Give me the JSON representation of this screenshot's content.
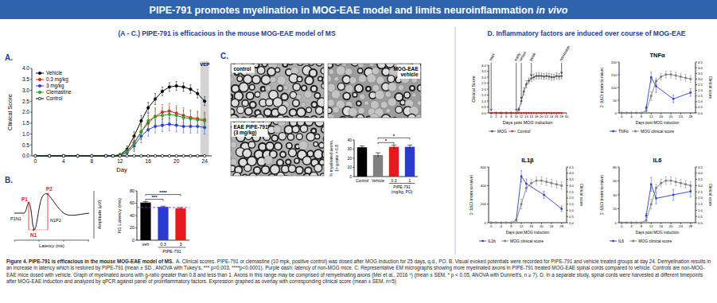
{
  "header": {
    "title": "PIPE-791 promotes myelination in MOG-EAE model and limits neuroinflammation",
    "title_italic": "in vivo"
  },
  "sections": [
    {
      "heading": "(A - C.) PIPE-791 is efficacious in the mouse MOG-EAE model of MS"
    },
    {
      "heading": "D.  Inflammatory factors are induced over course of  MOG-EAE"
    }
  ],
  "vep_diagram": {
    "peaks": [
      "P1",
      "N1",
      "P2"
    ],
    "intervals": [
      "P1N1",
      "N1P2"
    ],
    "xlabel": "Latency (ms)",
    "ylabel": "Amplitude (µV)"
  },
  "micrographs": [
    {
      "lines": [
        "control"
      ]
    },
    {
      "lines": [
        "MOG-EAE",
        "vehicle"
      ]
    },
    {
      "lines": [
        "EAE PIPE-791",
        "(3 mg/kg)"
      ]
    }
  ],
  "chart_data": [
    {
      "type": "line",
      "panel": "A.",
      "xlabel": "Day",
      "ylabel": "Clinical Score",
      "xlim": [
        -0.5,
        25
      ],
      "ylim": [
        0,
        4
      ],
      "xticks": [
        0,
        4,
        8,
        12,
        16,
        20,
        24
      ],
      "yticks": [
        {
          "value": 0,
          "label": "0.0"
        },
        0.5,
        {
          "value": 1,
          "label": "1.0"
        },
        1.5,
        {
          "value": 2,
          "label": "2.0"
        },
        2.5,
        {
          "value": 3,
          "label": "3.0"
        },
        3.5,
        {
          "value": 4,
          "label": "4.0"
        }
      ],
      "legend": "upper left",
      "annotations": [
        {
          "text": "VEP",
          "x_range": [
            23.4,
            24.6
          ]
        }
      ],
      "x": [
        0,
        2,
        4,
        6,
        8,
        10,
        11,
        12,
        13,
        14,
        15,
        16,
        17,
        18,
        19,
        20,
        21,
        22,
        23,
        24
      ],
      "series": [
        {
          "name": "Vehicle",
          "color": "#000000",
          "marker": "circle",
          "values": [
            0,
            0,
            0,
            0,
            0,
            0,
            0,
            0.05,
            0.3,
            0.9,
            1.6,
            2.2,
            2.6,
            2.95,
            3.15,
            3.2,
            3.15,
            3.05,
            2.85,
            2.5
          ],
          "errors": [
            null,
            null,
            null,
            null,
            null,
            null,
            null,
            0.05,
            0.15,
            0.2,
            0.25,
            0.25,
            0.25,
            0.2,
            0.2,
            0.2,
            0.2,
            0.2,
            0.2,
            0.2
          ]
        },
        {
          "name": "0.3 mg/kg",
          "color": "#e41a1c",
          "marker": "circle",
          "values": [
            0,
            0,
            0,
            0,
            0,
            0,
            0,
            0.05,
            0.2,
            0.6,
            1.1,
            1.5,
            1.8,
            2.0,
            2.05,
            1.95,
            1.85,
            1.75,
            1.7,
            1.65
          ],
          "errors": [
            null,
            null,
            null,
            null,
            null,
            null,
            null,
            0.05,
            0.1,
            0.3,
            0.35,
            0.35,
            0.35,
            0.35,
            0.35,
            0.35,
            0.35,
            0.35,
            0.35,
            0.35
          ]
        },
        {
          "name": "3 mg/kg",
          "color": "#2b3bd1",
          "marker": "circle",
          "values": [
            0,
            0,
            0,
            0,
            0,
            0,
            0,
            0,
            0.15,
            0.45,
            0.9,
            1.2,
            1.35,
            1.4,
            1.45,
            1.4,
            1.35,
            1.35,
            1.35,
            1.3
          ],
          "errors": [
            null,
            null,
            null,
            null,
            null,
            null,
            null,
            null,
            0.1,
            0.25,
            0.3,
            0.3,
            0.3,
            0.3,
            0.3,
            0.3,
            0.3,
            0.3,
            0.3,
            0.3
          ]
        },
        {
          "name": "Clemastine",
          "color": "#2ca02c",
          "marker": "circle",
          "values": [
            0,
            0,
            0,
            0,
            0,
            0,
            0,
            0.05,
            0.2,
            0.55,
            1.1,
            1.6,
            1.8,
            1.85,
            1.9,
            1.85,
            1.75,
            1.7,
            1.65,
            1.6
          ],
          "errors": [
            null,
            null,
            null,
            null,
            null,
            null,
            null,
            0.05,
            0.1,
            0.3,
            0.35,
            0.4,
            0.4,
            0.35,
            0.35,
            0.35,
            0.35,
            0.35,
            0.35,
            0.35
          ]
        },
        {
          "name": "Control",
          "color": "#000000",
          "marker": "open-circle",
          "values": [
            0,
            0,
            0,
            0,
            0,
            0,
            0,
            0,
            0,
            0,
            0,
            0,
            0,
            0,
            0,
            0,
            0,
            0,
            0,
            0
          ]
        }
      ]
    },
    {
      "type": "bar",
      "panel": "B.",
      "ylabel": "N1 Latency (ms)",
      "categories": [
        "veh",
        "0.3",
        "3"
      ],
      "group": {
        "label": "PIPE-791",
        "categories": [
          "0.3",
          "3"
        ]
      },
      "values": [
        61,
        54,
        51.5
      ],
      "errors": [
        1.5,
        1.2,
        1.5
      ],
      "colors": [
        "#000000",
        "#2b3bd1",
        "#e41a1c"
      ],
      "ylim": [
        0,
        80
      ],
      "yticks": [
        0,
        20,
        40,
        60,
        80
      ],
      "reference_line": {
        "value": 53,
        "color": "#9b30d9",
        "line_style": "dashed"
      },
      "significance": [
        {
          "between": [
            "veh",
            "0.3"
          ],
          "label": "***"
        },
        {
          "between": [
            "veh",
            "3"
          ],
          "label": "****"
        }
      ]
    },
    {
      "type": "bar",
      "panel": "C.",
      "ylabel": [
        "% myelinated axons,",
        "1> g-ratio > 0.8"
      ],
      "categories": [
        "Control",
        "Vehicle",
        "0.3",
        "1"
      ],
      "group": {
        "label": "PIPE-791",
        "sublabel": "(mg/kg, PO)",
        "categories": [
          "0.3",
          "1"
        ]
      },
      "values": [
        32,
        23.5,
        32.5,
        32.5
      ],
      "errors": [
        1.5,
        2.5,
        2,
        2
      ],
      "colors": [
        "#000000",
        "#808080",
        "#e41a1c",
        "#2b3bd1"
      ],
      "ylim": [
        0,
        40
      ],
      "yticks": [
        0,
        10,
        20,
        30,
        40
      ],
      "significance": [
        {
          "between": [
            "Vehicle",
            "0.3"
          ],
          "label": "*"
        },
        {
          "between": [
            "Vehicle",
            "1"
          ],
          "label": "*"
        }
      ]
    },
    {
      "type": "line",
      "xlabel": "Days post MOG induction",
      "ylabel": "Clinical Score",
      "xlim": [
        -1,
        30
      ],
      "ylim": [
        0,
        4
      ],
      "xticks": [
        0,
        2,
        4,
        6,
        8,
        10,
        12,
        14,
        16,
        18,
        20,
        22,
        24,
        26,
        28,
        30
      ],
      "yticks": [
        {
          "value": 0,
          "label": "0.0"
        },
        0.5,
        {
          "value": 1,
          "label": "1.0"
        },
        1.5,
        {
          "value": 2,
          "label": "2.0"
        },
        2.5,
        {
          "value": 3,
          "label": "3.0"
        },
        3.5,
        {
          "value": 4,
          "label": "4.0"
        }
      ],
      "legend": "bottom",
      "annotations": [
        {
          "text": "start",
          "x": 0
        },
        {
          "text": "early",
          "x": 10
        },
        {
          "text": "onset",
          "x": 12
        },
        {
          "text": "peak",
          "x": 16
        },
        {
          "text": "remission",
          "x": 28
        }
      ],
      "x": [
        0,
        2,
        4,
        6,
        8,
        10,
        11,
        12,
        13,
        14,
        15,
        16,
        17,
        18,
        19,
        20,
        21,
        22,
        23,
        24,
        25,
        26,
        27,
        28
      ],
      "series": [
        {
          "name": "MOG",
          "color": "#555555",
          "marker": "circle",
          "values": [
            0,
            0,
            0,
            0,
            0,
            0,
            0.3,
            1.0,
            1.8,
            2.4,
            2.7,
            2.9,
            3.0,
            3.1,
            3.1,
            3.1,
            3.05,
            3.1,
            3.05,
            3.0,
            3.0,
            3.1,
            3.05,
            3.1
          ],
          "errors": [
            null,
            null,
            null,
            null,
            null,
            null,
            0.15,
            0.25,
            0.3,
            0.3,
            0.25,
            0.25,
            0.25,
            0.25,
            0.25,
            0.25,
            0.25,
            0.25,
            0.25,
            0.25,
            0.25,
            0.25,
            0.25,
            0.25
          ]
        },
        {
          "name": "Control",
          "color": "#e41a1c",
          "marker": "square",
          "values": [
            0,
            0,
            0,
            0,
            0,
            0,
            0,
            0,
            0,
            0,
            0,
            0,
            0,
            0,
            0,
            0,
            0,
            0,
            0,
            0,
            0,
            0,
            0,
            0
          ]
        }
      ]
    },
    {
      "type": "line",
      "title": "TNFα",
      "ylabel": "2⁻ΔΔCt (norm to naive)",
      "y2label": "Clinical score",
      "xlabel": "Days post MOG induction",
      "xlim": [
        -1,
        30
      ],
      "ylim": [
        0,
        200
      ],
      "yticks": [
        0,
        50,
        100,
        150,
        200
      ],
      "y2lim": [
        0,
        4.5
      ],
      "y2ticks": [
        {
          "value": 0,
          "label": "0.0"
        },
        0.5,
        {
          "value": 1,
          "label": "1.0"
        },
        1.5,
        {
          "value": 2,
          "label": "2.0"
        },
        2.5,
        {
          "value": 3,
          "label": "3.0"
        },
        3.5,
        {
          "value": 4,
          "label": "4.0"
        },
        4.5
      ],
      "xticks": [
        0,
        4,
        8,
        12,
        16,
        20,
        24,
        28
      ],
      "legend": "bottom",
      "series": [
        {
          "name": "TNFα",
          "color": "#2b3bd1",
          "marker": "square",
          "x": [
            10,
            12,
            14,
            21,
            28
          ],
          "values": [
            20,
            140,
            105,
            55,
            80
          ],
          "errors": [
            5,
            20,
            25,
            15,
            15
          ]
        },
        {
          "name": "MOG clinical score",
          "color": "#808080",
          "marker": "circle",
          "axis": "y2",
          "x": [
            0,
            2,
            4,
            6,
            8,
            10,
            12,
            14,
            16,
            18,
            20,
            22,
            24,
            26,
            28
          ],
          "values": [
            0,
            0,
            0,
            0,
            0,
            0.2,
            1.5,
            2.8,
            3.2,
            3.4,
            3.4,
            3.3,
            3.2,
            3.1,
            3.0
          ],
          "errors": [
            null,
            null,
            null,
            null,
            null,
            0.1,
            0.4,
            0.3,
            0.3,
            0.3,
            0.3,
            0.3,
            0.3,
            0.3,
            0.3
          ]
        }
      ]
    },
    {
      "type": "line",
      "title": "IL1β",
      "ylabel": "2⁻ΔΔCt (norm to naive)",
      "y2label": "Clinical score",
      "xlabel": "Days post MOG induction",
      "xlim": [
        -1,
        30
      ],
      "ylim": [
        0,
        600
      ],
      "yticks": [
        0,
        200,
        400,
        600
      ],
      "y2lim": [
        0,
        4.5
      ],
      "y2ticks": [
        {
          "value": 0,
          "label": "0.0"
        },
        0.5,
        {
          "value": 1,
          "label": "1.0"
        },
        1.5,
        {
          "value": 2,
          "label": "2.0"
        },
        2.5,
        {
          "value": 3,
          "label": "3.0"
        },
        3.5,
        {
          "value": 4,
          "label": "4.0"
        },
        4.5
      ],
      "xticks": [
        0,
        4,
        8,
        12,
        16,
        20,
        24,
        28
      ],
      "legend": "bottom",
      "series": [
        {
          "name": "IL1b",
          "color": "#2b3bd1",
          "marker": "square",
          "x": [
            10,
            12,
            14,
            21,
            28
          ],
          "values": [
            30,
            500,
            420,
            300,
            150
          ],
          "errors": [
            10,
            60,
            50,
            40,
            30
          ]
        },
        {
          "name": "MOG clinical score",
          "color": "#808080",
          "marker": "circle",
          "axis": "y2",
          "x": [
            0,
            2,
            4,
            6,
            8,
            10,
            12,
            14,
            16,
            18,
            20,
            22,
            24,
            26,
            28
          ],
          "values": [
            0,
            0,
            0,
            0,
            0,
            0.2,
            1.5,
            2.8,
            3.2,
            3.4,
            3.4,
            3.3,
            3.2,
            3.1,
            3.0
          ],
          "errors": [
            null,
            null,
            null,
            null,
            null,
            0.1,
            0.4,
            0.3,
            0.3,
            0.3,
            0.3,
            0.3,
            0.3,
            0.3,
            0.3
          ]
        }
      ]
    },
    {
      "type": "line",
      "title": "IL6",
      "ylabel": "2⁻ΔΔCt (norm to naive)",
      "y2label": "Clinical score",
      "xlabel": "Days post MOG induction",
      "xlim": [
        -1,
        30
      ],
      "ylim": [
        0,
        80
      ],
      "yticks": [
        0,
        20,
        40,
        60,
        80
      ],
      "y2lim": [
        0,
        4.5
      ],
      "y2ticks": [
        {
          "value": 0,
          "label": "0.0"
        },
        0.5,
        {
          "value": 1,
          "label": "1.0"
        },
        1.5,
        {
          "value": 2,
          "label": "2.0"
        },
        2.5,
        {
          "value": 3,
          "label": "3.0"
        },
        3.5,
        {
          "value": 4,
          "label": "4.0"
        },
        4.5
      ],
      "xticks": [
        0,
        4,
        8,
        12,
        16,
        20,
        24,
        28
      ],
      "legend": "bottom",
      "series": [
        {
          "name": "IL6",
          "color": "#2b3bd1",
          "marker": "square",
          "x": [
            10,
            12,
            14,
            21,
            28
          ],
          "values": [
            10,
            55,
            35,
            40,
            45
          ],
          "errors": [
            3,
            10,
            8,
            8,
            8
          ]
        },
        {
          "name": "MOG clinical score",
          "color": "#808080",
          "marker": "circle",
          "axis": "y2",
          "x": [
            0,
            2,
            4,
            6,
            8,
            10,
            12,
            14,
            16,
            18,
            20,
            22,
            24,
            26,
            28
          ],
          "values": [
            0,
            0,
            0,
            0,
            0,
            0.2,
            1.5,
            2.8,
            3.2,
            3.4,
            3.4,
            3.3,
            3.2,
            3.1,
            3.0
          ],
          "errors": [
            null,
            null,
            null,
            null,
            null,
            0.1,
            0.4,
            0.3,
            0.3,
            0.3,
            0.3,
            0.3,
            0.3,
            0.3,
            0.3
          ]
        }
      ]
    }
  ],
  "caption": {
    "lead": "Figure 4. PIPE-791 is efficacious in the mouse MOG-EAE model of MS.",
    "text": "A. Clinical scores. PIPE-791 or clemastine (10 mpk, positive control) was dosed after MOG induction for 25 days, q.d., PO. B. Visual evoked potentials were recorded for PIPE-791 and vehicle treated groups at day 24. Demyelination results in an increase in latency which is restored by PIPE-791 (mean ± SD , ANOVA with Tukey's, *** p=0.003, ****p<0.0001). Purple dash: latency of non-MOG mice. C. Representative EM micrographs showing more myelinated axons in PIPE-791 treated MOG-EAE spinal cords compared to vehicle. Controls are non-MOG-EAE mice dosed with vehicle. Graph of myelinated axons with g-ratio greater than 0.8 and less than 1. Axons in this range may be comprised of remyelinating axons (Mei et al., 2016 ⁹) (mean ± SEM, * p < 0.05, ANOVA with Dunnett's, n ≥ 7). D. In a separate study, spinal cords were harvested at different timepoints after MOG-EAE induction and analyzed by qPCR against panel of proinflammatory factors. Expression graphed as overlay with corresponding clinical score (mean ± SEM, n=5)"
  }
}
